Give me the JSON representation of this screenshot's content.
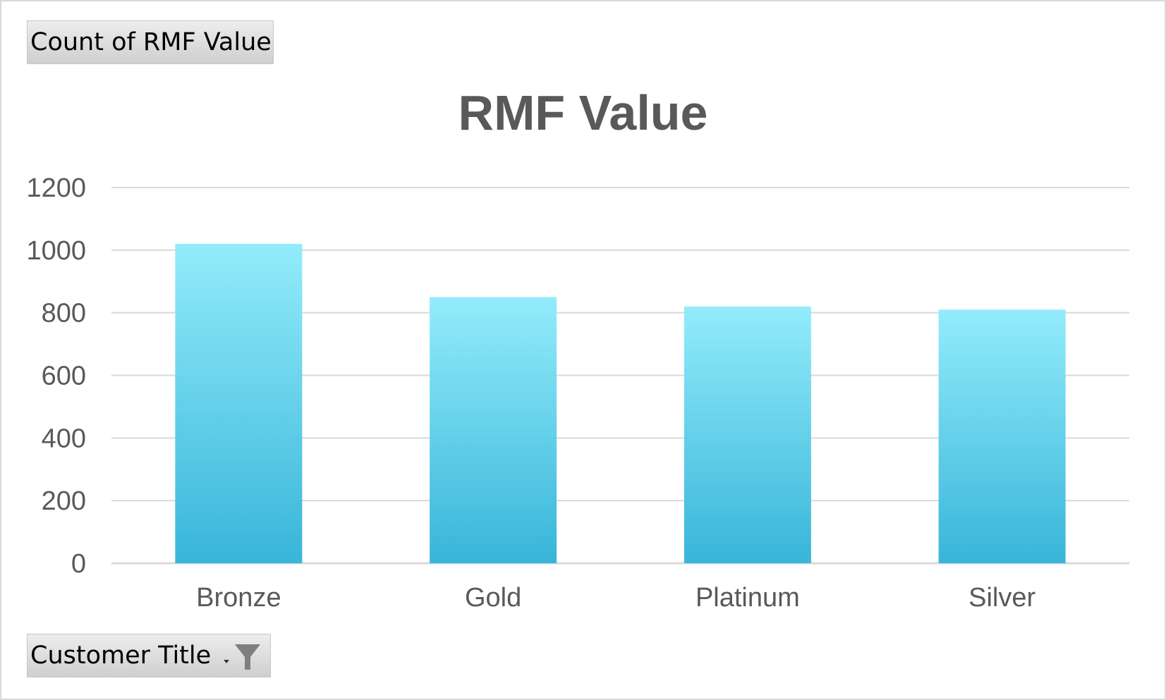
{
  "field_buttons": {
    "values_label": "Count of RMF Value",
    "axis_label": "Customer Title"
  },
  "icons": {
    "filter": "funnel-filter-icon",
    "dropdown": "dropdown-arrow-icon"
  },
  "colors": {
    "bar_top": "#93ecfb",
    "bar_bottom": "#38b5d9",
    "gridline": "#d9d9d9",
    "text": "#595959"
  },
  "chart_data": {
    "type": "bar",
    "title": "RMF Value",
    "categories": [
      "Bronze",
      "Gold",
      "Platinum",
      "Silver"
    ],
    "values": [
      1020,
      850,
      820,
      810
    ],
    "ylim": [
      0,
      1200
    ],
    "yticks": [
      "0",
      "200",
      "400",
      "600",
      "800",
      "1000",
      "1200"
    ],
    "grid": true,
    "legend": "none"
  }
}
